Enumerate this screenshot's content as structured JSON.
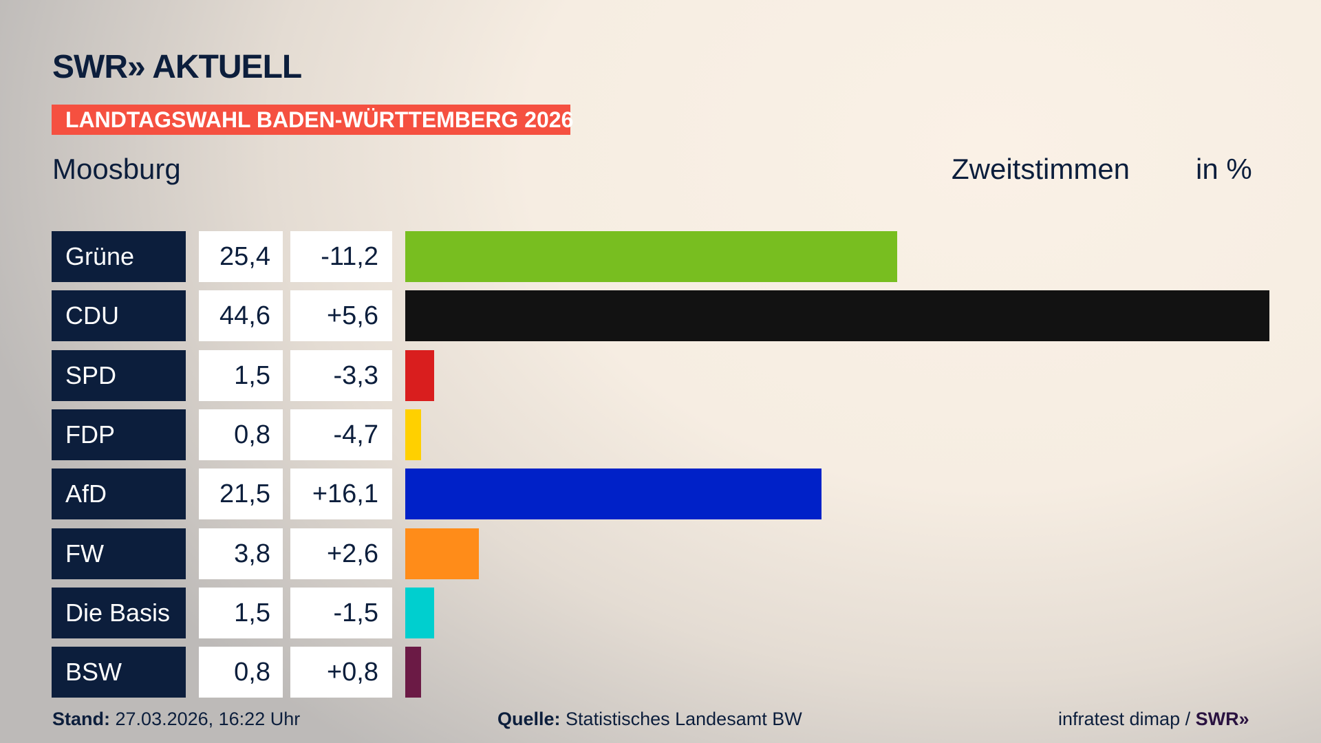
{
  "header": {
    "logo": "SWR» AKTUELL",
    "banner": "LANDTAGSWAHL BADEN-WÜRTTEMBERG 2026",
    "place": "Moosburg",
    "metric": "Zweitstimmen",
    "unit": "in %"
  },
  "chart_data": {
    "type": "bar",
    "orientation": "horizontal",
    "xlim": [
      0,
      44.6
    ],
    "categories": [
      "Grüne",
      "CDU",
      "SPD",
      "FDP",
      "AfD",
      "FW",
      "Die Basis",
      "BSW"
    ],
    "values": [
      25.4,
      44.6,
      1.5,
      0.8,
      21.5,
      3.8,
      1.5,
      0.8
    ],
    "value_labels": [
      "25,4",
      "44,6",
      "1,5",
      "0,8",
      "21,5",
      "3,8",
      "1,5",
      "0,8"
    ],
    "diff_labels": [
      "-11,2",
      "+5,6",
      "-3,3",
      "-4,7",
      "+16,1",
      "+2,6",
      "-1,5",
      "+0,8"
    ],
    "colors": [
      "#78be20",
      "#121212",
      "#d91e1e",
      "#ffd000",
      "#0021c8",
      "#ff8c19",
      "#00cfcf",
      "#6b1a45"
    ]
  },
  "footer": {
    "stand_label": "Stand:",
    "stand_value": "27.03.2026, 16:22 Uhr",
    "source_label": "Quelle:",
    "source_value": "Statistisches Landesamt BW",
    "credit": "infratest dimap /",
    "credit_logo": "SWR»"
  }
}
